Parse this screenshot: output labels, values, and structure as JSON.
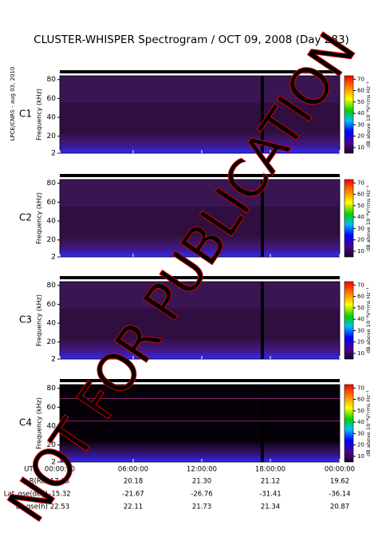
{
  "title": "CLUSTER-WHISPER Spectrogram / OCT 09, 2008 (Day 283)",
  "side_label": "LPCE/CNRS - aug 03, 2010",
  "watermark": "NOT FOR PUBLICATION",
  "chart_data": [
    {
      "type": "spectrogram",
      "panel_label": "C1",
      "panel_label_color": "#000000",
      "background": "#2e0f40",
      "ylabel": "Frequency (kHz)",
      "ylim": [
        2,
        84
      ],
      "yticks": [
        2,
        20,
        40,
        60,
        80
      ],
      "colorbar_label": "dB above 10⁻⁸V²rms Hz⁻¹",
      "clim": [
        5,
        73
      ],
      "cticks": [
        10,
        20,
        30,
        40,
        50,
        60,
        70
      ]
    },
    {
      "type": "spectrogram",
      "panel_label": "C2",
      "panel_label_color": "#000000",
      "background": "#2e0f40",
      "ylabel": "Frequency (kHz)",
      "ylim": [
        2,
        84
      ],
      "yticks": [
        2,
        20,
        40,
        60,
        80
      ],
      "colorbar_label": "dB above 10⁻⁸V²rms Hz⁻¹",
      "clim": [
        5,
        73
      ],
      "cticks": [
        10,
        20,
        30,
        40,
        50,
        60,
        70
      ]
    },
    {
      "type": "spectrogram",
      "panel_label": "C3",
      "panel_label_color": "#2ca02c",
      "background": "#2e0f40",
      "ylabel": "Frequency (kHz)",
      "ylim": [
        2,
        84
      ],
      "yticks": [
        2,
        20,
        40,
        60,
        80
      ],
      "colorbar_label": "dB above 10⁻⁸V²rms Hz⁻¹",
      "clim": [
        5,
        73
      ],
      "cticks": [
        10,
        20,
        30,
        40,
        50,
        60,
        70
      ]
    },
    {
      "type": "spectrogram",
      "panel_label": "C4",
      "panel_label_color": "#000000",
      "background": "#050008",
      "ylabel": "Frequency (kHz)",
      "ylim": [
        2,
        84
      ],
      "yticks": [
        2,
        20,
        40,
        60,
        80
      ],
      "colorbar_label": "dB above 10⁻⁸V²rms Hz⁻¹",
      "clim": [
        5,
        73
      ],
      "cticks": [
        10,
        20,
        30,
        40,
        50,
        60,
        70
      ]
    }
  ],
  "ephemeris": {
    "rows": [
      {
        "label": "UT",
        "values": [
          "00:00:00",
          "06:00:00",
          "12:00:00",
          "18:00:00",
          "00:00:00"
        ]
      },
      {
        "label": "R(Re)",
        "values": [
          "17.65",
          "20.18",
          "21.30",
          "21.12",
          "19.62"
        ]
      },
      {
        "label": "Lat_gse(deg)",
        "values": [
          "-15.32",
          "-21.67",
          "-26.76",
          "-31.41",
          "-36.14"
        ]
      },
      {
        "label": "LT_gse(h)",
        "values": [
          "22.53",
          "22.11",
          "21.73",
          "21.34",
          "20.87"
        ]
      }
    ]
  }
}
